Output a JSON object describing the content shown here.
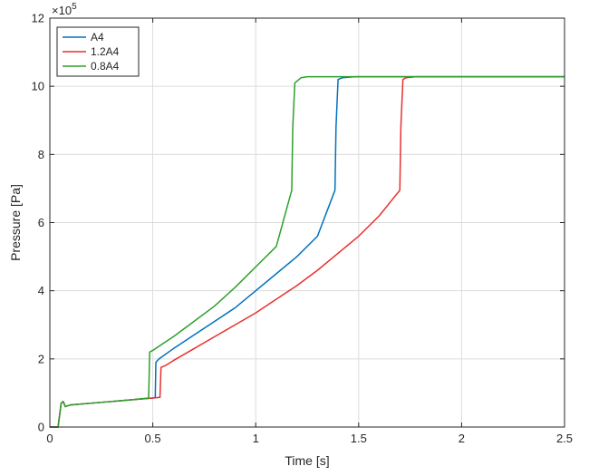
{
  "chart_data": {
    "type": "line",
    "title": "",
    "xlabel": "Time [s]",
    "ylabel": "Pressure [Pa]",
    "y_exponent_label": "×10",
    "y_exponent_power": "5",
    "xlim": [
      0,
      2.5
    ],
    "ylim": [
      0,
      12
    ],
    "xticks": [
      0,
      0.5,
      1,
      1.5,
      2,
      2.5
    ],
    "xtick_labels": [
      "0",
      "0.5",
      "1",
      "1.5",
      "2",
      "2.5"
    ],
    "yticks": [
      0,
      2,
      4,
      6,
      8,
      10,
      12
    ],
    "ytick_labels": [
      "0",
      "2",
      "4",
      "6",
      "8",
      "10",
      "12"
    ],
    "grid": true,
    "legend_position": "top-left",
    "series": [
      {
        "name": "A4",
        "color": "#0072BD",
        "points": [
          [
            0,
            0
          ],
          [
            0.04,
            0
          ],
          [
            0.055,
            0.7
          ],
          [
            0.065,
            0.75
          ],
          [
            0.075,
            0.6
          ],
          [
            0.1,
            0.65
          ],
          [
            0.2,
            0.7
          ],
          [
            0.3,
            0.75
          ],
          [
            0.4,
            0.8
          ],
          [
            0.5,
            0.85
          ],
          [
            0.512,
            0.87
          ],
          [
            0.515,
            1.9
          ],
          [
            0.53,
            2.0
          ],
          [
            0.6,
            2.3
          ],
          [
            0.7,
            2.7
          ],
          [
            0.8,
            3.1
          ],
          [
            0.9,
            3.5
          ],
          [
            1.0,
            4.0
          ],
          [
            1.1,
            4.5
          ],
          [
            1.2,
            5.0
          ],
          [
            1.3,
            5.6
          ],
          [
            1.385,
            6.95
          ],
          [
            1.39,
            8.8
          ],
          [
            1.4,
            10.2
          ],
          [
            1.42,
            10.25
          ],
          [
            1.48,
            10.28
          ],
          [
            2.5,
            10.28
          ]
        ]
      },
      {
        "name": "1.2A4",
        "color": "#E8302E",
        "points": [
          [
            0,
            0
          ],
          [
            0.04,
            0
          ],
          [
            0.055,
            0.7
          ],
          [
            0.065,
            0.75
          ],
          [
            0.075,
            0.6
          ],
          [
            0.1,
            0.65
          ],
          [
            0.2,
            0.7
          ],
          [
            0.3,
            0.75
          ],
          [
            0.4,
            0.8
          ],
          [
            0.5,
            0.85
          ],
          [
            0.535,
            0.87
          ],
          [
            0.54,
            1.75
          ],
          [
            0.56,
            1.8
          ],
          [
            0.6,
            1.95
          ],
          [
            0.7,
            2.3
          ],
          [
            0.8,
            2.65
          ],
          [
            0.9,
            3.0
          ],
          [
            1.0,
            3.35
          ],
          [
            1.1,
            3.75
          ],
          [
            1.2,
            4.15
          ],
          [
            1.3,
            4.6
          ],
          [
            1.4,
            5.1
          ],
          [
            1.5,
            5.6
          ],
          [
            1.6,
            6.2
          ],
          [
            1.7,
            6.95
          ],
          [
            1.705,
            8.8
          ],
          [
            1.715,
            10.2
          ],
          [
            1.73,
            10.25
          ],
          [
            1.78,
            10.28
          ],
          [
            2.5,
            10.28
          ]
        ]
      },
      {
        "name": "0.8A4",
        "color": "#2CA02C",
        "points": [
          [
            0,
            0
          ],
          [
            0.04,
            0
          ],
          [
            0.055,
            0.7
          ],
          [
            0.065,
            0.75
          ],
          [
            0.075,
            0.6
          ],
          [
            0.1,
            0.65
          ],
          [
            0.2,
            0.7
          ],
          [
            0.3,
            0.75
          ],
          [
            0.4,
            0.8
          ],
          [
            0.48,
            0.85
          ],
          [
            0.485,
            2.2
          ],
          [
            0.5,
            2.25
          ],
          [
            0.55,
            2.45
          ],
          [
            0.6,
            2.65
          ],
          [
            0.7,
            3.1
          ],
          [
            0.8,
            3.55
          ],
          [
            0.9,
            4.1
          ],
          [
            1.0,
            4.7
          ],
          [
            1.1,
            5.3
          ],
          [
            1.175,
            6.95
          ],
          [
            1.18,
            8.8
          ],
          [
            1.19,
            10.1
          ],
          [
            1.22,
            10.25
          ],
          [
            1.25,
            10.28
          ],
          [
            2.5,
            10.28
          ]
        ]
      }
    ]
  }
}
